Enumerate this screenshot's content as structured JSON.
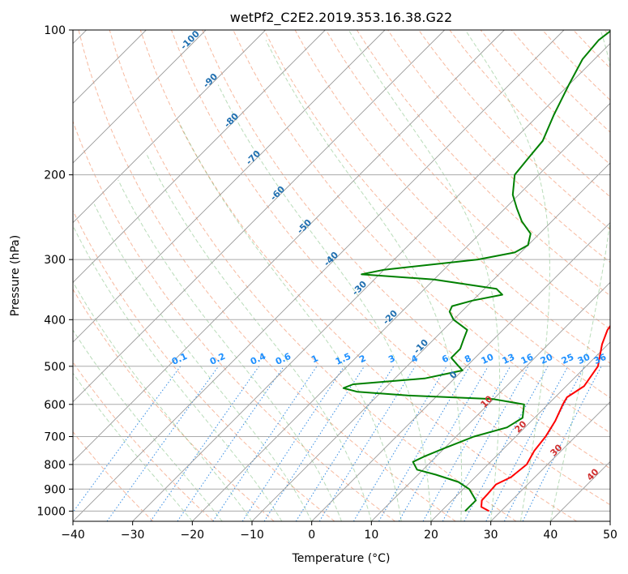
{
  "chart_data": {
    "type": "line",
    "title": "wetPf2_C2E2.2019.353.16.38.G22",
    "xlabel": "Temperature (°C)",
    "ylabel": "Pressure (hPa)",
    "xlim": [
      -40,
      50
    ],
    "ylim": [
      1050,
      100
    ],
    "y_scale": "log",
    "grid": true,
    "x_ticks": [
      "−40",
      "−30",
      "−20",
      "−10",
      "0",
      "10",
      "20",
      "30",
      "40",
      "50"
    ],
    "y_ticks": [
      "100",
      "200",
      "300",
      "400",
      "500",
      "600",
      "700",
      "800",
      "900",
      "1000"
    ],
    "skew_labels": [
      "-100",
      "-90",
      "-80",
      "-70",
      "-60",
      "-50",
      "-40",
      "-30",
      "-20",
      "-10",
      "0",
      "10",
      "20",
      "30",
      "40"
    ],
    "mixing_ratio_labels": [
      "0.1",
      "0.2",
      "0.4",
      "0.6",
      "1",
      "1.5",
      "2",
      "3",
      "4",
      "6",
      "8",
      "10",
      "13",
      "16",
      "20",
      "25",
      "30",
      "36"
    ],
    "series": [
      {
        "color": "#ff0000",
        "points": [
          {
            "p": 1000,
            "t": 28.0
          },
          {
            "p": 980,
            "t": 26.0
          },
          {
            "p": 950,
            "t": 25.0
          },
          {
            "p": 920,
            "t": 24.9
          },
          {
            "p": 880,
            "t": 24.7
          },
          {
            "p": 850,
            "t": 26.0
          },
          {
            "p": 800,
            "t": 26.5
          },
          {
            "p": 750,
            "t": 25.5
          },
          {
            "p": 700,
            "t": 25.0
          },
          {
            "p": 650,
            "t": 24.0
          },
          {
            "p": 600,
            "t": 22.5
          },
          {
            "p": 580,
            "t": 22.0
          },
          {
            "p": 550,
            "t": 23.0
          },
          {
            "p": 500,
            "t": 22.0
          },
          {
            "p": 450,
            "t": 19.0
          },
          {
            "p": 420,
            "t": 17.5
          },
          {
            "p": 400,
            "t": 17.0
          },
          {
            "p": 360,
            "t": 16.0
          },
          {
            "p": 330,
            "t": 13.5
          },
          {
            "p": 300,
            "t": 9.0
          },
          {
            "p": 270,
            "t": 5.5
          },
          {
            "p": 240,
            "t": 2.5
          },
          {
            "p": 200,
            "t": -2.0
          },
          {
            "p": 180,
            "t": -5.5
          },
          {
            "p": 160,
            "t": -8.0
          },
          {
            "p": 140,
            "t": -11.0
          },
          {
            "p": 125,
            "t": -14.0
          },
          {
            "p": 115,
            "t": -14.5
          },
          {
            "p": 108,
            "t": -13.5
          },
          {
            "p": 100,
            "t": -12.5
          }
        ]
      },
      {
        "color": "#008000",
        "points": [
          {
            "p": 1000,
            "t": 24.0
          },
          {
            "p": 980,
            "t": 24.0
          },
          {
            "p": 950,
            "t": 24.0
          },
          {
            "p": 900,
            "t": 21.0
          },
          {
            "p": 870,
            "t": 18.0
          },
          {
            "p": 840,
            "t": 13.0
          },
          {
            "p": 820,
            "t": 9.0
          },
          {
            "p": 790,
            "t": 7.0
          },
          {
            "p": 770,
            "t": 8.0
          },
          {
            "p": 740,
            "t": 10.0
          },
          {
            "p": 700,
            "t": 13.0
          },
          {
            "p": 670,
            "t": 17.0
          },
          {
            "p": 640,
            "t": 18.0
          },
          {
            "p": 600,
            "t": 16.0
          },
          {
            "p": 585,
            "t": 10.0
          },
          {
            "p": 575,
            "t": -5.0
          },
          {
            "p": 565,
            "t": -14.0
          },
          {
            "p": 555,
            "t": -17.0
          },
          {
            "p": 545,
            "t": -16.0
          },
          {
            "p": 530,
            "t": -5.0
          },
          {
            "p": 510,
            "t": 0.0
          },
          {
            "p": 495,
            "t": -2.0
          },
          {
            "p": 480,
            "t": -4.0
          },
          {
            "p": 460,
            "t": -4.0
          },
          {
            "p": 440,
            "t": -5.0
          },
          {
            "p": 420,
            "t": -6.0
          },
          {
            "p": 400,
            "t": -10.0
          },
          {
            "p": 385,
            "t": -12.0
          },
          {
            "p": 375,
            "t": -12.5
          },
          {
            "p": 365,
            "t": -10.0
          },
          {
            "p": 355,
            "t": -6.0
          },
          {
            "p": 345,
            "t": -8.0
          },
          {
            "p": 330,
            "t": -20.0
          },
          {
            "p": 322,
            "t": -33.0
          },
          {
            "p": 315,
            "t": -30.0
          },
          {
            "p": 300,
            "t": -16.0
          },
          {
            "p": 290,
            "t": -11.0
          },
          {
            "p": 280,
            "t": -10.0
          },
          {
            "p": 265,
            "t": -11.5
          },
          {
            "p": 250,
            "t": -15.0
          },
          {
            "p": 235,
            "t": -18.0
          },
          {
            "p": 220,
            "t": -21.0
          },
          {
            "p": 200,
            "t": -24.0
          },
          {
            "p": 185,
            "t": -24.5
          },
          {
            "p": 170,
            "t": -25.0
          },
          {
            "p": 150,
            "t": -27.5
          },
          {
            "p": 130,
            "t": -30.0
          },
          {
            "p": 115,
            "t": -32.0
          },
          {
            "p": 105,
            "t": -32.5
          },
          {
            "p": 100,
            "t": -32.0
          }
        ]
      }
    ]
  }
}
